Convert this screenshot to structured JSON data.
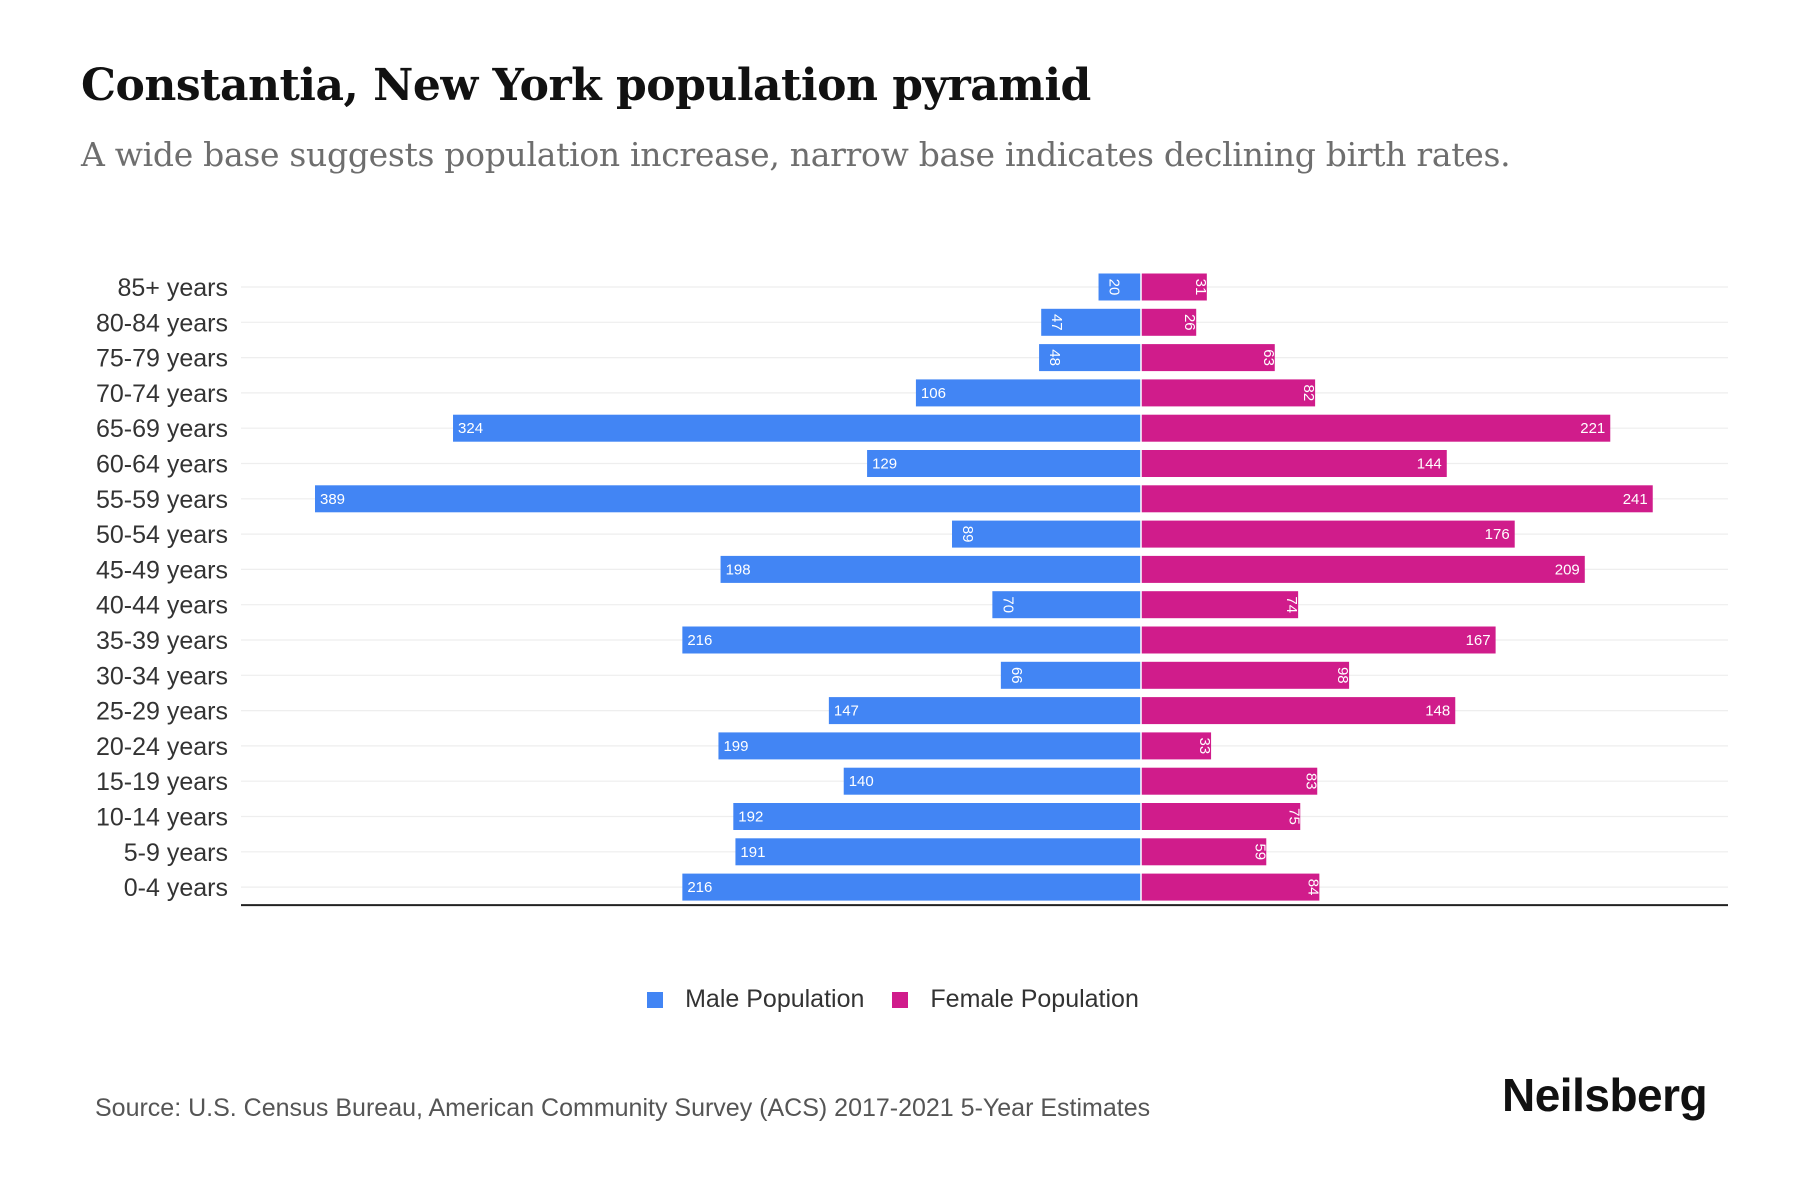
{
  "header": {
    "title": "Constantia, New York population pyramid",
    "subtitle": "A wide base suggests population increase, narrow base indicates declining birth rates."
  },
  "footer": {
    "source": "Source: U.S. Census Bureau, American Community Survey (ACS) 2017-2021 5-Year Estimates",
    "brand": "Neilsberg"
  },
  "colors": {
    "male": "#4285f4",
    "female": "#d01c8b",
    "gridline": "#eeeeee",
    "axis": "#222222"
  },
  "chart_data": {
    "type": "bar",
    "orientation": "horizontal-pyramid",
    "title": "Constantia, New York population pyramid",
    "subtitle": "A wide base suggests population increase, narrow base indicates declining birth rates.",
    "xlabel": "",
    "ylabel": "",
    "grid": true,
    "legend_position": "bottom-center",
    "categories": [
      "85+ years",
      "80-84 years",
      "75-79 years",
      "70-74 years",
      "65-69 years",
      "60-64 years",
      "55-59 years",
      "50-54 years",
      "45-49 years",
      "40-44 years",
      "35-39 years",
      "30-34 years",
      "25-29 years",
      "20-24 years",
      "15-19 years",
      "10-14 years",
      "5-9 years",
      "0-4 years"
    ],
    "series": [
      {
        "name": "Male Population",
        "side": "left",
        "values": [
          20,
          47,
          48,
          106,
          324,
          129,
          389,
          89,
          198,
          70,
          216,
          66,
          147,
          199,
          140,
          192,
          191,
          216
        ]
      },
      {
        "name": "Female Population",
        "side": "right",
        "values": [
          31,
          26,
          63,
          82,
          221,
          144,
          241,
          176,
          209,
          74,
          167,
          98,
          148,
          33,
          83,
          75,
          59,
          84
        ]
      }
    ],
    "xlim": [
      -389,
      389
    ]
  },
  "legend": [
    {
      "label": "Male Population",
      "color": "#4285f4"
    },
    {
      "label": "Female Population",
      "color": "#d01c8b"
    }
  ]
}
